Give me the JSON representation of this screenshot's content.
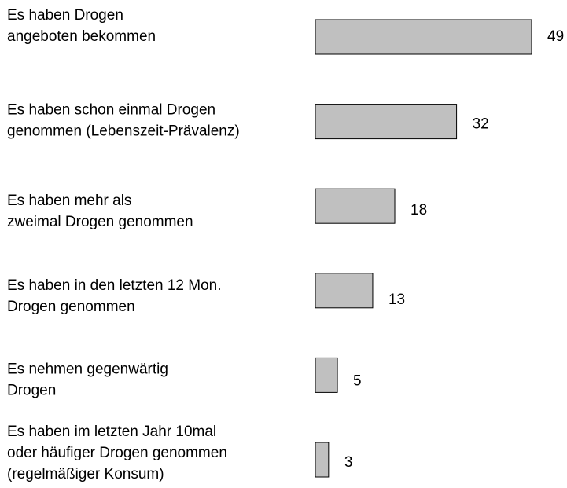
{
  "chart_data": {
    "type": "barh",
    "categories": [
      [
        "Es haben Drogen",
        "angeboten bekommen"
      ],
      [
        "Es haben schon einmal Drogen",
        "genommen (Lebenszeit-Prävalenz)"
      ],
      [
        "Es haben mehr als",
        "zweimal Drogen genommen"
      ],
      [
        "Es haben in den letzten 12 Mon.",
        "Drogen genommen"
      ],
      [
        "Es nehmen gegenwärtig",
        "Drogen"
      ],
      [
        "Es haben im letzten Jahr 10mal",
        "oder häufiger Drogen genommen",
        "(regelmäßiger Konsum)"
      ]
    ],
    "values": [
      49,
      32,
      18,
      13,
      5,
      3
    ],
    "color": "#c0c0c0"
  }
}
